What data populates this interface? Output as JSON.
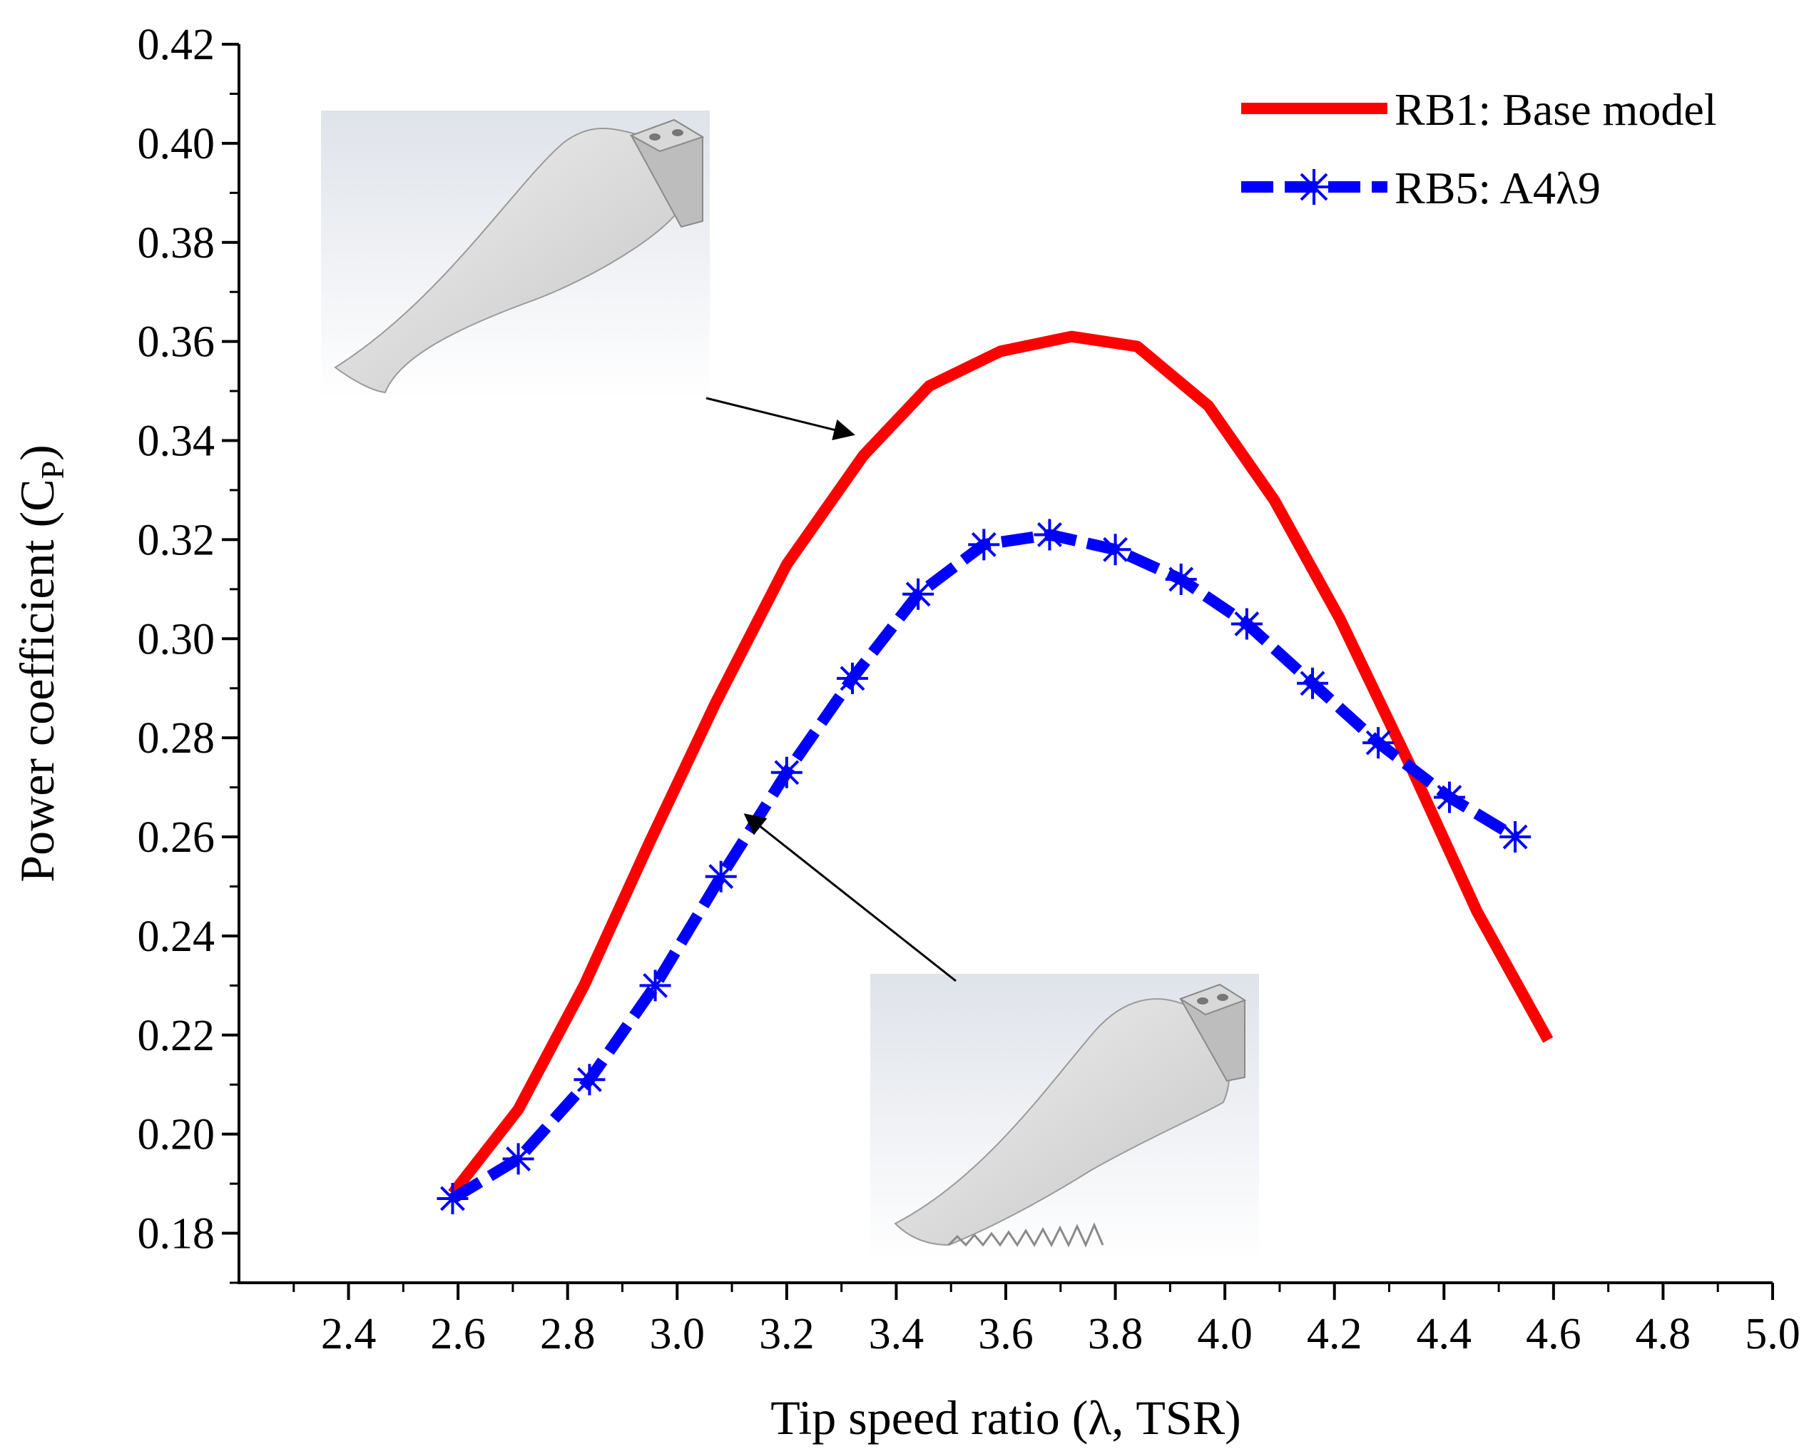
{
  "chart_data": {
    "type": "line",
    "title": "",
    "xlabel": "Tip speed ratio (λ, TSR)",
    "ylabel_main": "Power coefficient (C",
    "ylabel_sub": "P",
    "ylabel_close": ")",
    "xlim": [
      2.2,
      5.0
    ],
    "ylim": [
      0.17,
      0.42
    ],
    "x_ticks": [
      "2.4",
      "2.6",
      "2.8",
      "3.0",
      "3.2",
      "3.4",
      "3.6",
      "3.8",
      "4.0",
      "4.2",
      "4.4",
      "4.6",
      "4.8",
      "5.0"
    ],
    "y_ticks": [
      "0.18",
      "0.20",
      "0.22",
      "0.24",
      "0.26",
      "0.28",
      "0.30",
      "0.32",
      "0.34",
      "0.36",
      "0.38",
      "0.40",
      "0.42"
    ],
    "legend_position": "top-right",
    "series": [
      {
        "name": "RB1: Base model",
        "color": "#ff0000",
        "style": "solid",
        "marker": "none",
        "x": [
          2.59,
          2.71,
          2.83,
          2.95,
          3.07,
          3.2,
          3.34,
          3.46,
          3.59,
          3.72,
          3.84,
          3.97,
          4.09,
          4.21,
          4.34,
          4.46,
          4.59
        ],
        "y": [
          0.188,
          0.205,
          0.23,
          0.259,
          0.287,
          0.315,
          0.337,
          0.351,
          0.358,
          0.361,
          0.359,
          0.347,
          0.328,
          0.304,
          0.274,
          0.245,
          0.219
        ]
      },
      {
        "name": "RB5: A4λ9",
        "color": "#0000ff",
        "style": "dashed",
        "marker": "asterisk",
        "x": [
          2.59,
          2.71,
          2.84,
          2.96,
          3.08,
          3.2,
          3.32,
          3.44,
          3.56,
          3.68,
          3.8,
          3.92,
          4.04,
          4.16,
          4.28,
          4.41,
          4.53
        ],
        "y": [
          0.187,
          0.195,
          0.211,
          0.23,
          0.252,
          0.273,
          0.292,
          0.309,
          0.319,
          0.321,
          0.318,
          0.312,
          0.303,
          0.291,
          0.279,
          0.268,
          0.26
        ]
      }
    ],
    "annotations": [
      {
        "name": "base-blade-image",
        "points_to": "RB1: Base model",
        "at": [
          3.36,
          0.341
        ]
      },
      {
        "name": "tubercle-blade-image",
        "points_to": "RB5: A4λ9",
        "at": [
          3.17,
          0.267
        ]
      }
    ]
  }
}
